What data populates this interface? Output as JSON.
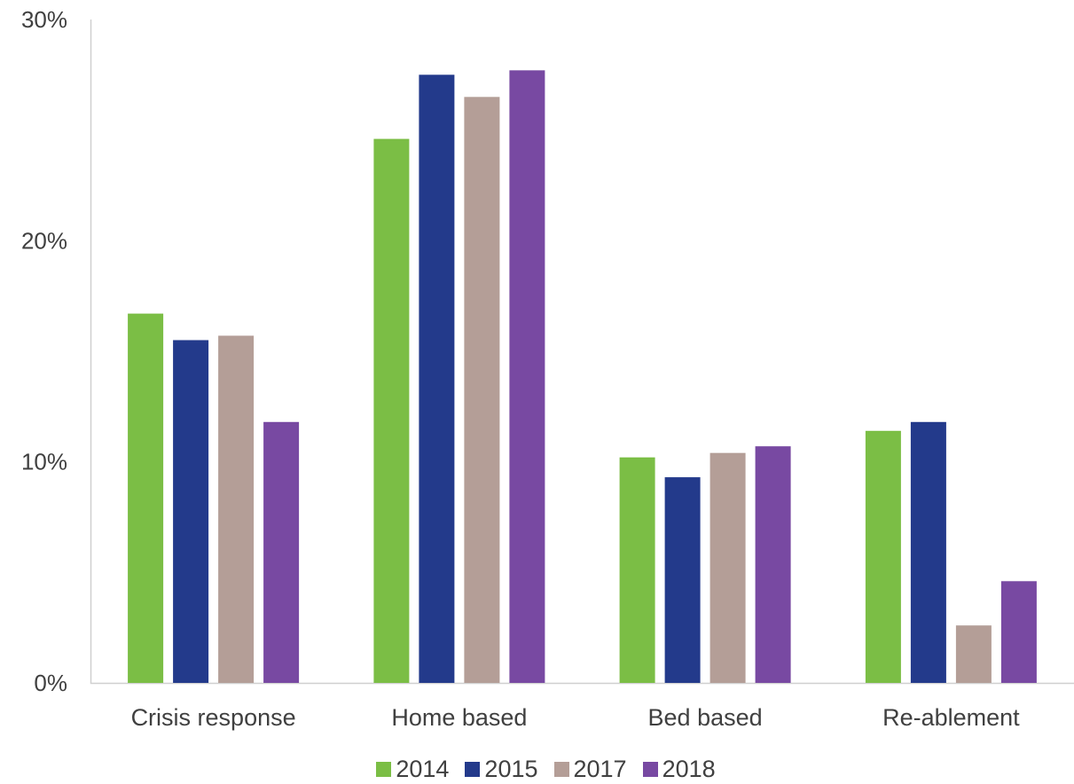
{
  "chart_data": {
    "type": "bar",
    "categories": [
      "Crisis response",
      "Home based",
      "Bed based",
      "Re-ablement"
    ],
    "series": [
      {
        "name": "2014",
        "color": "#7BBE45",
        "values": [
          16.7,
          24.6,
          10.2,
          11.4
        ]
      },
      {
        "name": "2015",
        "color": "#233A8B",
        "values": [
          15.5,
          27.5,
          9.3,
          11.8
        ]
      },
      {
        "name": "2017",
        "color": "#B49E97",
        "values": [
          15.7,
          26.5,
          10.4,
          2.6
        ]
      },
      {
        "name": "2018",
        "color": "#7849A2",
        "values": [
          11.8,
          27.7,
          10.7,
          4.6
        ]
      }
    ],
    "ylim": [
      0,
      30
    ],
    "yticks": [
      "0%",
      "10%",
      "20%",
      "30%"
    ],
    "ytick_values": [
      0,
      10,
      20,
      30
    ],
    "grid": false,
    "legend_position": "bottom"
  }
}
